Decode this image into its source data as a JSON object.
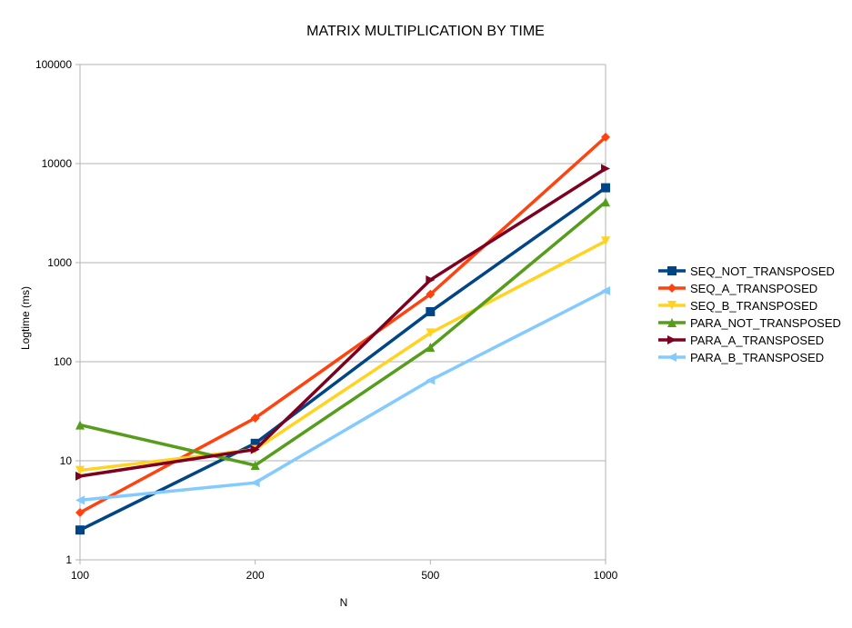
{
  "chart_data": {
    "type": "line",
    "title": "MATRIX MULTIPLICATION BY TIME",
    "xlabel": "N",
    "ylabel": "Logtime (ms)",
    "yscale": "log",
    "ylim": [
      1,
      100000
    ],
    "categories": [
      "100",
      "200",
      "500",
      "1000"
    ],
    "ytick_labels": [
      "1",
      "10",
      "100",
      "1000",
      "10000",
      "100000"
    ],
    "grid": true,
    "legend_position": "right",
    "series": [
      {
        "name": "SEQ_NOT_TRANSPOSED",
        "color": "#004586",
        "marker": "square",
        "values": [
          2,
          15,
          320,
          5700
        ]
      },
      {
        "name": "SEQ_A_TRANSPOSED",
        "color": "#ff420e",
        "marker": "diamond",
        "values": [
          3,
          27,
          480,
          18500
        ]
      },
      {
        "name": "SEQ_B_TRANSPOSED",
        "color": "#ffd320",
        "marker": "triangle-down",
        "values": [
          8,
          13,
          195,
          1650
        ]
      },
      {
        "name": "PARA_NOT_TRANSPOSED",
        "color": "#579d1c",
        "marker": "triangle-up",
        "values": [
          23,
          9,
          140,
          4100
        ]
      },
      {
        "name": "PARA_A_TRANSPOSED",
        "color": "#7e0021",
        "marker": "triangle-right",
        "values": [
          7,
          13,
          670,
          8900
        ]
      },
      {
        "name": "PARA_B_TRANSPOSED",
        "color": "#83caff",
        "marker": "triangle-left",
        "values": [
          4,
          6,
          65,
          520
        ]
      }
    ]
  }
}
